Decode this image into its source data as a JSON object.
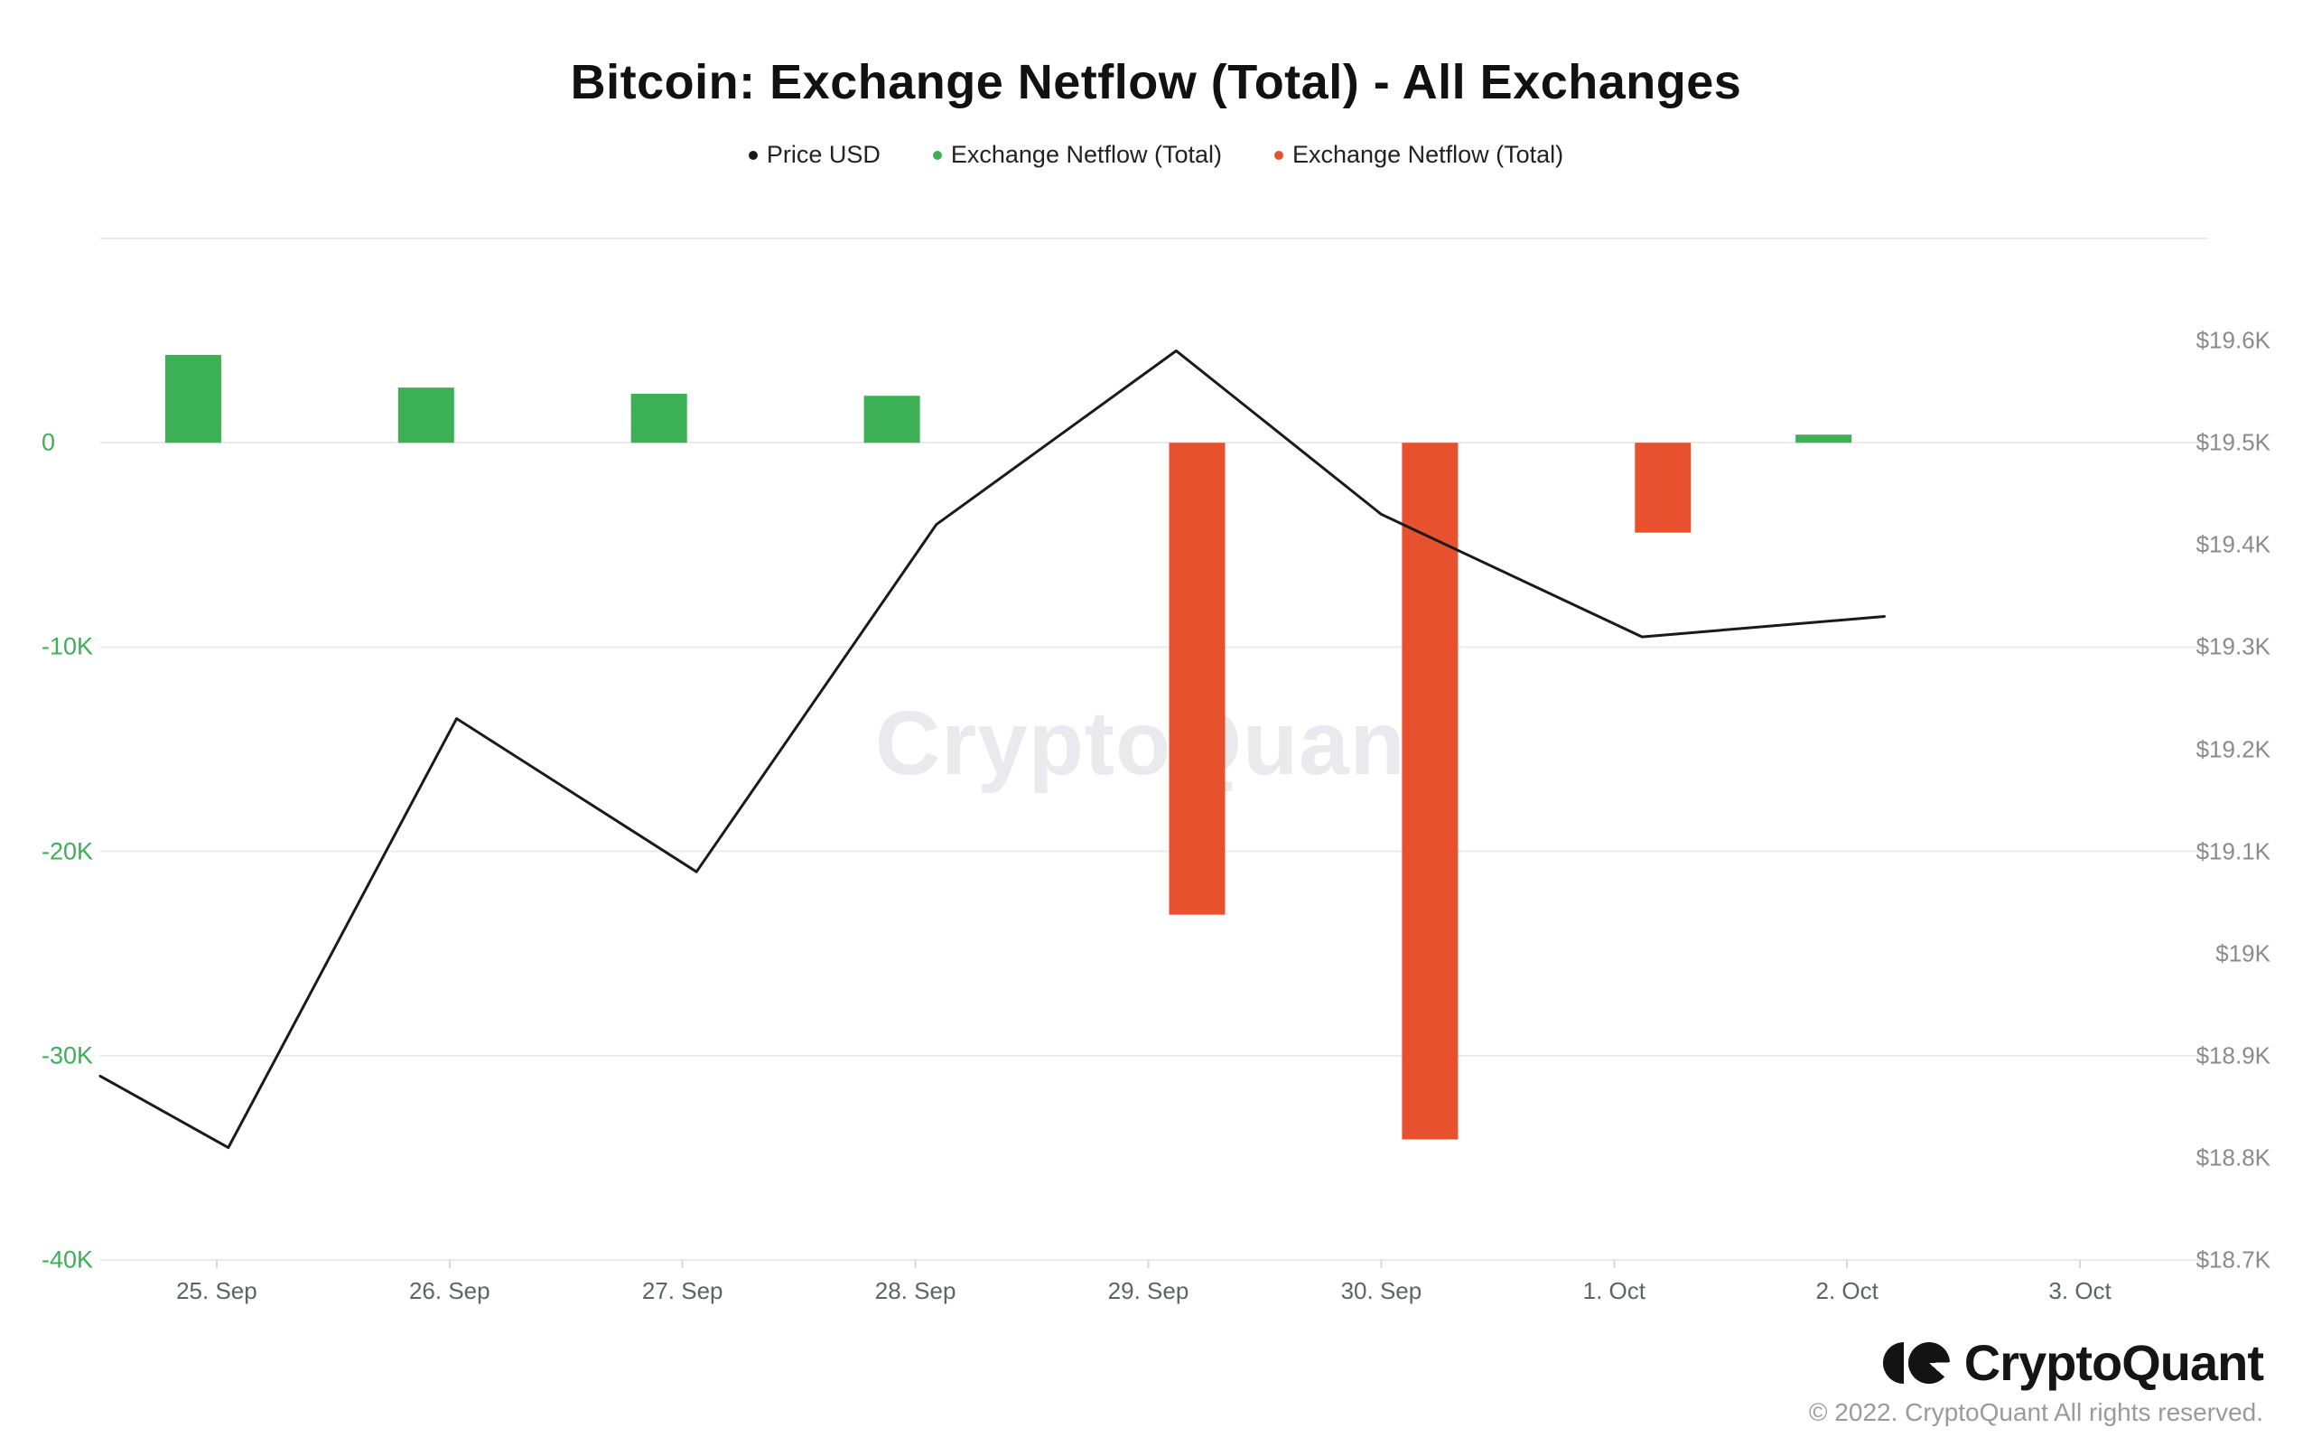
{
  "header": {
    "title": "Bitcoin: Exchange Netflow (Total) - All Exchanges"
  },
  "legend": [
    {
      "label": "Price USD",
      "color": "#1a1a1a"
    },
    {
      "label": "Exchange Netflow (Total)",
      "color": "#3CB054"
    },
    {
      "label": "Exchange Netflow (Total)",
      "color": "#E8512D"
    }
  ],
  "watermark": "CryptoQuant",
  "footer": {
    "brand": "CryptoQuant",
    "copyright": "© 2022. CryptoQuant All rights reserved."
  },
  "chart_data": {
    "type": "mixed",
    "title": "Bitcoin: Exchange Netflow (Total) - All Exchanges",
    "categories": [
      "25. Sep",
      "26. Sep",
      "27. Sep",
      "28. Sep",
      "29. Sep",
      "30. Sep",
      "1. Oct",
      "2. Oct",
      "3. Oct"
    ],
    "series": [
      {
        "name": "Exchange Netflow (Total)",
        "type": "bar",
        "role": "positive-netflow",
        "color": "#3CB054",
        "unit": "K BTC",
        "values": [
          4.3,
          2.7,
          2.4,
          2.3,
          null,
          null,
          null,
          0.4,
          null
        ]
      },
      {
        "name": "Exchange Netflow (Total)",
        "type": "bar",
        "role": "negative-netflow",
        "color": "#E8512D",
        "unit": "K BTC",
        "values": [
          null,
          null,
          null,
          null,
          -23.1,
          -34.1,
          -4.4,
          null,
          null
        ]
      },
      {
        "name": "Price USD",
        "type": "line",
        "color": "#1a1a1a",
        "unit": "$K",
        "x_day_index": [
          -0.5,
          0.05,
          1.03,
          2.06,
          3.09,
          4.12,
          5,
          6.12,
          7.16
        ],
        "values": [
          18.88,
          18.81,
          19.23,
          19.08,
          19.42,
          19.59,
          19.43,
          19.31,
          19.33
        ]
      }
    ],
    "left_axis": {
      "label_color": "#3CB054",
      "ticks": [
        "0",
        "-10K",
        "-20K",
        "-30K",
        "-40K"
      ],
      "tick_values": [
        0,
        -10,
        -20,
        -30,
        -40
      ],
      "grid_values": [
        10,
        0,
        -10,
        -20,
        -30,
        -40
      ],
      "range": [
        10,
        -40
      ]
    },
    "right_axis": {
      "label_color": "#8b8b8b",
      "ticks": [
        "$19.6K",
        "$19.5K",
        "$19.4K",
        "$19.3K",
        "$19.2K",
        "$19.1K",
        "$19K",
        "$18.9K",
        "$18.8K",
        "$18.7K"
      ],
      "tick_values": [
        19.6,
        19.5,
        19.4,
        19.3,
        19.2,
        19.1,
        19.0,
        18.9,
        18.8,
        18.7
      ],
      "range": [
        18.7,
        19.6
      ],
      "value_at_zero_line": 19.5
    },
    "grid": "horizontal-only",
    "legend_position": "top-center"
  }
}
